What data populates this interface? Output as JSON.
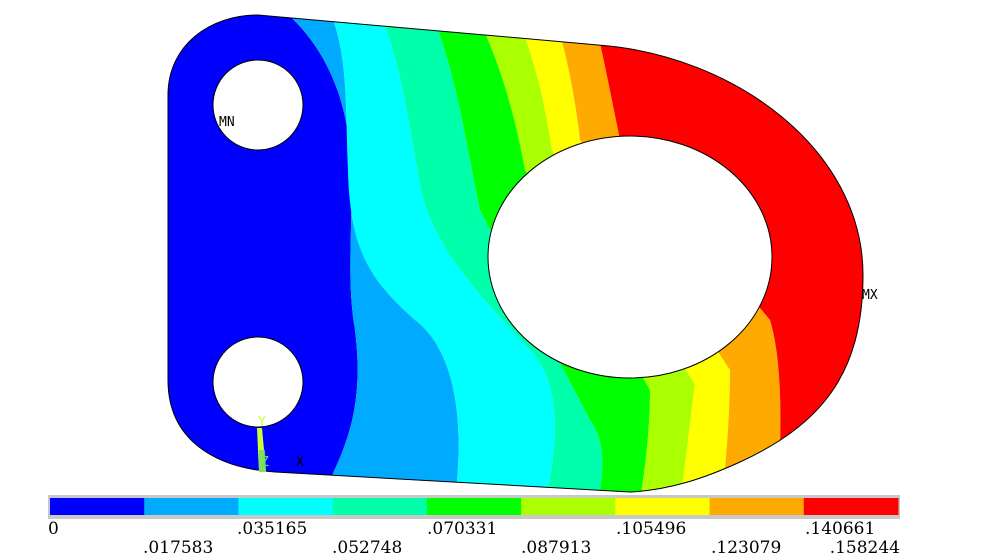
{
  "contour": {
    "bands": [
      {
        "color": "#0000ff"
      },
      {
        "color": "#00aaff"
      },
      {
        "color": "#00ffff"
      },
      {
        "color": "#00ffaa"
      },
      {
        "color": "#00ff00"
      },
      {
        "color": "#aaff00"
      },
      {
        "color": "#ffff00"
      },
      {
        "color": "#ffaa00"
      },
      {
        "color": "#ff0000"
      }
    ],
    "legend_top_labels": [
      "0",
      ".035165",
      ".070331",
      ".105496",
      ".140661"
    ],
    "legend_bottom_labels": [
      ".017583",
      ".052748",
      ".087913",
      ".123079",
      ".158244"
    ]
  },
  "markers": {
    "min_label": "MN",
    "max_label": "MX"
  },
  "triad": {
    "x_label": "X",
    "y_label": "Y",
    "z_label": "Z",
    "x_color": "#000000",
    "y_color": "#ccff33",
    "z_color": "#66dd66"
  }
}
